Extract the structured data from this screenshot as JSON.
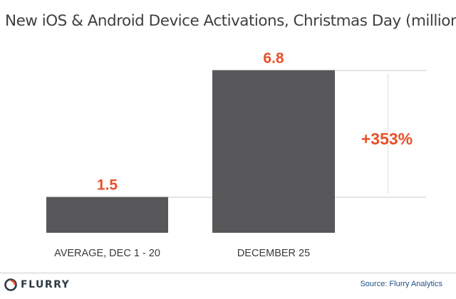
{
  "chart_data": {
    "type": "bar",
    "title": "New iOS & Android Device Activations, Christmas Day (millions)",
    "categories": [
      "AVERAGE, DEC 1 - 20",
      "DECEMBER 25"
    ],
    "values": [
      1.5,
      6.8
    ],
    "value_labels": [
      "1.5",
      "6.8"
    ],
    "ylim": [
      0,
      7.5
    ],
    "grid": false,
    "annotation": "+353%",
    "colors": {
      "bar": "#58585a",
      "value_label": "#e8502a",
      "annotation": "#e8502a"
    }
  },
  "footer": {
    "brand": "FLURRY",
    "brand_icon": "flurry-logo-icon",
    "source": "Source: Flurry Analytics"
  }
}
